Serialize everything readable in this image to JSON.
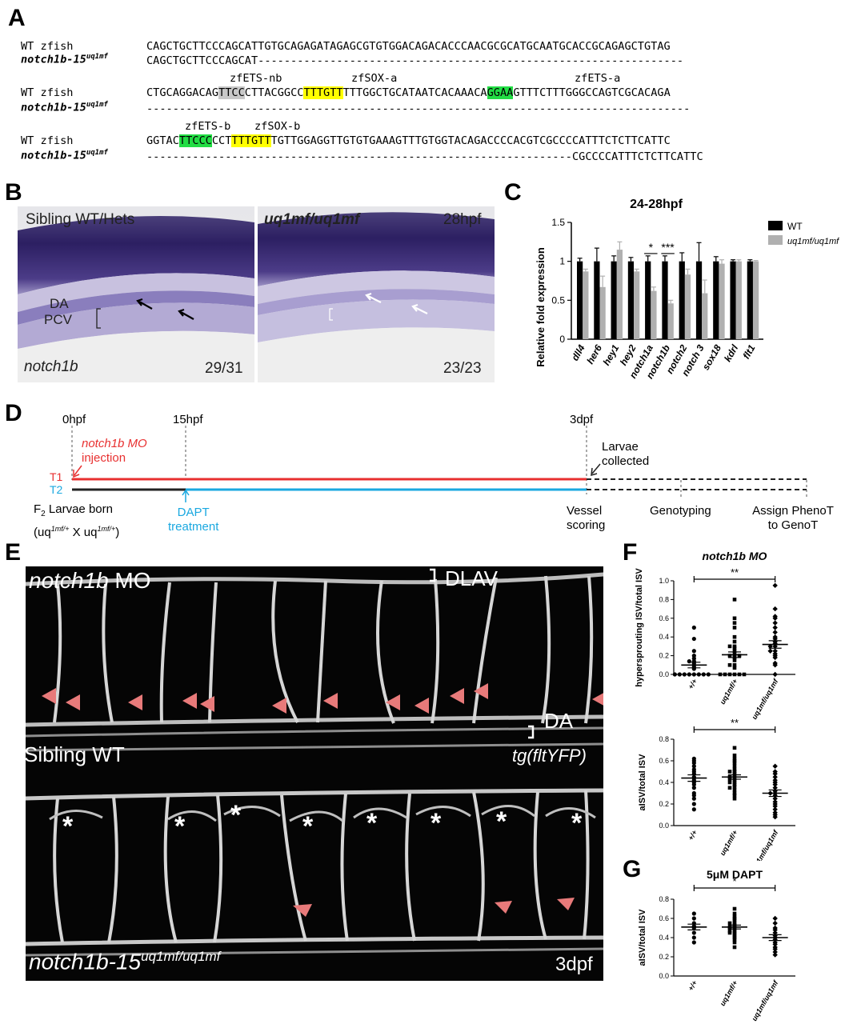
{
  "panels": {
    "A": "A",
    "B": "B",
    "C": "C",
    "D": "D",
    "E": "E",
    "F": "F",
    "G": "G"
  },
  "panelA": {
    "rows": [
      {
        "label1": "WT zfish",
        "label2_main": "notch1b-15",
        "label2_sup": "uq1mf",
        "seq1": "CAGCTGCTTCCCAGCATTGTGCAGAGATAGAGCGTGTGGACAGACACCCAACGCGCATGCAATGCACCGCAGAGCTGTAG",
        "seq2": "CAGCTGCTTCCCAGCAT-----------------------------------------------------------------"
      },
      {
        "label1": "WT zfish",
        "label2_main": "notch1b-15",
        "label2_sup": "uq1mf",
        "seq1_parts": [
          "CTGCAGGACAG",
          "TTCC",
          "CTTACGGCC",
          "TTTGTT",
          "TTTGGCTGCATAATCACAAACA",
          "GGAA",
          "GTTTCTTTGGGCCAGTCGCACAGA"
        ],
        "seq2": "-----------------------------------------------------------------------------------",
        "elements": [
          "zfETS-nb",
          "zfSOX-a",
          "zfETS-a"
        ]
      },
      {
        "label1": "WT zfish",
        "label2_main": "notch1b-15",
        "label2_sup": "uq1mf",
        "seq1_parts": [
          "GGTAC",
          "TTCCC",
          "CCT",
          "TTTGTT",
          "TGTTGGAGGTTGTGTGAAAGTTTGTGGTACAGACCCCACGTCGCCCCATTTCTCTTCATTC"
        ],
        "seq2": "-----------------------------------------------------------------CGCCCCATTTCTCTTCATTC",
        "elements": [
          "zfETS-b",
          "zfSOX-b"
        ]
      }
    ]
  },
  "panelB": {
    "left_title": "Sibling WT/Hets",
    "left_gene": "notch1b",
    "left_count": "29/31",
    "label_da": "DA",
    "label_pcv": "PCV",
    "right_title": "uq1mf/uq1mf",
    "right_stage": "28hpf",
    "right_count": "23/23"
  },
  "chart_data": [
    {
      "type": "bar",
      "panel": "C",
      "title": "24-28hpf",
      "ylabel": "Relative fold expression",
      "ylim": [
        0,
        1.5
      ],
      "yticks": [
        "0",
        "0.5",
        "1",
        "1.5"
      ],
      "categories": [
        "dll4",
        "her6",
        "hey1",
        "hey2",
        "notch1a",
        "notch1b",
        "notch2",
        "notch 3",
        "sox18",
        "kdrl",
        "flt1"
      ],
      "series": [
        {
          "name": "WT",
          "color": "#000000",
          "values": [
            1.0,
            1.0,
            1.0,
            1.0,
            1.0,
            1.0,
            1.0,
            1.0,
            1.0,
            1.0,
            1.0
          ],
          "err": [
            0.04,
            0.17,
            0.07,
            0.05,
            0.07,
            0.07,
            0.11,
            0.24,
            0.06,
            0.02,
            0.02
          ]
        },
        {
          "name": "uq1mf/uq1mf",
          "color": "#b0b0b0",
          "values": [
            0.87,
            0.67,
            1.15,
            0.87,
            0.62,
            0.46,
            0.83,
            0.59,
            0.97,
            1.0,
            1.0
          ],
          "err": [
            0.03,
            0.14,
            0.1,
            0.03,
            0.05,
            0.04,
            0.07,
            0.17,
            0.05,
            0.02,
            0.01
          ]
        }
      ],
      "significance": [
        {
          "category": "notch1a",
          "label": "*"
        },
        {
          "category": "notch1b",
          "label": "***"
        }
      ],
      "legend": [
        "WT",
        "uq1mf/uq1mf"
      ]
    },
    {
      "type": "scatter",
      "panel": "F-top",
      "title": "notch1b MO",
      "ylabel": "hypersprouting ISV/total ISV",
      "ylim": [
        0,
        1.0
      ],
      "yticks": [
        "0.0",
        "0.2",
        "0.4",
        "0.6",
        "0.8",
        "1.0"
      ],
      "categories": [
        "+/+",
        "uq1mf/+",
        "uq1mf/uq1mf"
      ],
      "means": [
        0.1,
        0.21,
        0.32
      ],
      "sem": [
        0.03,
        0.03,
        0.04
      ],
      "points": [
        [
          0.5,
          0.38,
          0.25,
          0.2,
          0.17,
          0.14,
          0.14,
          0.12,
          0.1,
          0.08,
          0.06,
          0.0,
          0.0,
          0.0,
          0.0,
          0.0,
          0.0,
          0.0,
          0.0
        ],
        [
          0.8,
          0.6,
          0.55,
          0.5,
          0.4,
          0.35,
          0.3,
          0.3,
          0.28,
          0.25,
          0.22,
          0.2,
          0.2,
          0.2,
          0.18,
          0.15,
          0.1,
          0.1,
          0.07,
          0.0,
          0.0,
          0.0,
          0.0,
          0.0,
          0.0
        ],
        [
          0.95,
          0.7,
          0.62,
          0.6,
          0.55,
          0.5,
          0.45,
          0.4,
          0.38,
          0.35,
          0.33,
          0.3,
          0.3,
          0.25,
          0.25,
          0.22,
          0.2,
          0.18,
          0.12,
          0.1,
          0.0
        ]
      ],
      "significance": [
        {
          "from": "+/+",
          "to": "uq1mf/uq1mf",
          "label": "**"
        }
      ]
    },
    {
      "type": "scatter",
      "panel": "F-bottom",
      "title": "",
      "ylabel": "aISV/total ISV",
      "ylim": [
        0,
        0.8
      ],
      "yticks": [
        "0.0",
        "0.2",
        "0.4",
        "0.6",
        "0.8"
      ],
      "categories": [
        "+/+",
        "uq1mf/+",
        "uq1mf/uq1mf"
      ],
      "means": [
        0.44,
        0.45,
        0.3
      ],
      "sem": [
        0.03,
        0.02,
        0.03
      ],
      "points": [
        [
          0.62,
          0.6,
          0.58,
          0.55,
          0.52,
          0.5,
          0.48,
          0.45,
          0.44,
          0.42,
          0.4,
          0.38,
          0.35,
          0.3,
          0.28,
          0.25,
          0.2,
          0.15
        ],
        [
          0.72,
          0.65,
          0.62,
          0.6,
          0.58,
          0.55,
          0.52,
          0.5,
          0.5,
          0.48,
          0.46,
          0.45,
          0.44,
          0.43,
          0.42,
          0.4,
          0.4,
          0.38,
          0.36,
          0.35,
          0.33,
          0.3,
          0.28,
          0.25
        ],
        [
          0.55,
          0.5,
          0.48,
          0.45,
          0.42,
          0.4,
          0.38,
          0.35,
          0.32,
          0.3,
          0.3,
          0.28,
          0.25,
          0.22,
          0.2,
          0.18,
          0.15,
          0.12,
          0.1,
          0.08
        ]
      ],
      "significance": [
        {
          "from": "+/+",
          "to": "uq1mf/uq1mf",
          "label": "**"
        }
      ]
    },
    {
      "type": "scatter",
      "panel": "G",
      "title": "5μM DAPT",
      "ylabel": "aISV/total ISV",
      "ylim": [
        0,
        0.8
      ],
      "yticks": [
        "0.0",
        "0.2",
        "0.4",
        "0.6",
        "0.8"
      ],
      "categories": [
        "+/+",
        "uq1mf/+",
        "uq1mf/uq1mf"
      ],
      "means": [
        0.51,
        0.51,
        0.4
      ],
      "sem": [
        0.03,
        0.02,
        0.03
      ],
      "points": [
        [
          0.65,
          0.6,
          0.55,
          0.52,
          0.5,
          0.45,
          0.4,
          0.35
        ],
        [
          0.7,
          0.65,
          0.62,
          0.6,
          0.58,
          0.55,
          0.55,
          0.53,
          0.52,
          0.51,
          0.5,
          0.5,
          0.48,
          0.47,
          0.46,
          0.45,
          0.44,
          0.42,
          0.4,
          0.38,
          0.35,
          0.3
        ],
        [
          0.6,
          0.55,
          0.5,
          0.48,
          0.45,
          0.42,
          0.4,
          0.38,
          0.35,
          0.33,
          0.3,
          0.28,
          0.25,
          0.22
        ]
      ],
      "significance": [
        {
          "from": "+/+",
          "to": "uq1mf/uq1mf",
          "label": "*"
        }
      ]
    }
  ],
  "panelD": {
    "t0": "0hpf",
    "t15": "15hpf",
    "t3": "3dpf",
    "mo_line1": "notch1b MO",
    "mo_line2": "injection",
    "collected1": "Larvae",
    "collected2": "collected",
    "T1": "T1",
    "T2": "T2",
    "born1": "F",
    "born_sub": "2",
    "born2": "Larvae born",
    "cross_open": "(uq",
    "cross_sup1": "1mf/+",
    "cross_mid": " X uq",
    "cross_sup2": "1mf/+",
    "cross_close": ")",
    "dapt1": "DAPT",
    "dapt2": "treatment",
    "vessel1": "Vessel",
    "vessel2": "scoring",
    "geno": "Genotyping",
    "assign1": "Assign PhenoT",
    "assign2": "to GenoT",
    "red": "#e83030",
    "blue": "#1aa8e0"
  },
  "panelE": {
    "top_gene": "notch1b",
    "top_mo": "MO",
    "dlav": "DLAV",
    "da": "DA",
    "sibling": "Sibling WT",
    "tg": "tg(fltYFP)",
    "bottom_gene": "notch1b-15",
    "bottom_sup": "uq1mf/uq1mf",
    "stage": "3dpf"
  }
}
